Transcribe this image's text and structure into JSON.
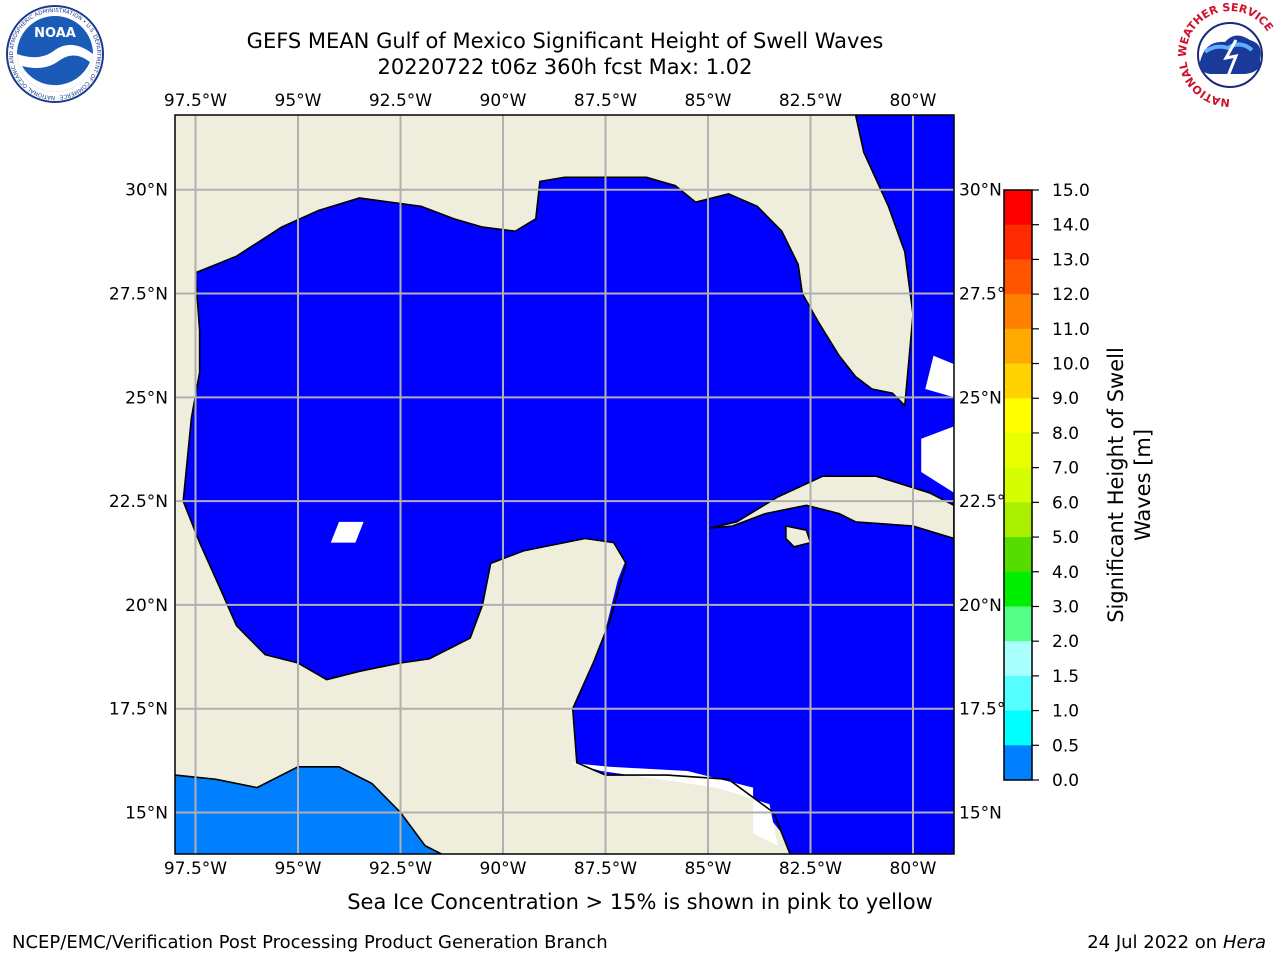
{
  "title_line1": "GEFS MEAN Gulf of Mexico Significant Height of Swell Waves",
  "title_line2": "20220722 t06z 360h fcst   Max: 1.02",
  "lon_labels": [
    "97.5°W",
    "95°W",
    "92.5°W",
    "90°W",
    "87.5°W",
    "85°W",
    "82.5°W",
    "80°W"
  ],
  "lat_labels_left": [
    "30°N",
    "27.5°N",
    "25°N",
    "22.5°N",
    "20°N",
    "17.5°N",
    "15°N"
  ],
  "lat_labels_right": [
    "30°N",
    "27.5°",
    "25°N",
    "22.5°",
    "20°N",
    "17.5°",
    "15°N"
  ],
  "colorbar": {
    "label": "Significant Height of Swell Waves [m]",
    "label_line1": "Significant Height of Swell",
    "label_line2": "Waves [m]",
    "ticks": [
      "15.0",
      "14.0",
      "13.0",
      "12.0",
      "11.0",
      "10.0",
      "9.0",
      "8.0",
      "7.0",
      "6.0",
      "5.0",
      "4.0",
      "3.0",
      "2.0",
      "1.5",
      "1.0",
      "0.5",
      "0.0"
    ],
    "colors": [
      "#ff0000",
      "#ff2a00",
      "#ff5500",
      "#ff8000",
      "#ffaa00",
      "#ffd200",
      "#ffff00",
      "#eaff00",
      "#d5ff00",
      "#aaee00",
      "#55dd00",
      "#00ee00",
      "#55ff88",
      "#aaffff",
      "#55ffff",
      "#00ffff",
      "#0080ff",
      "#0000ff"
    ]
  },
  "map": {
    "lon_range": [
      -98.0,
      -79.0
    ],
    "lat_range": [
      14.0,
      31.8
    ],
    "ocean_color": "#0000ff",
    "pacific_color": "#0080ff",
    "land_color": "#efeedc",
    "grid_color": "#b0b0b0"
  },
  "ice_note": "Sea Ice Concentration > 15% is shown in pink to yellow",
  "footer_left": "NCEP/EMC/Verification Post Processing Product Generation Branch",
  "footer_right_date": "24 Jul 2022 on",
  "footer_right_host": "Hera",
  "logos": {
    "noaa": "NOAA",
    "noaa_ring": "NATIONAL OCEANIC AND ATMOSPHERIC ADMINISTRATION • U.S. DEPARTMENT OF COMMERCE",
    "nws_ring": "NATIONAL WEATHER SERVICE"
  }
}
